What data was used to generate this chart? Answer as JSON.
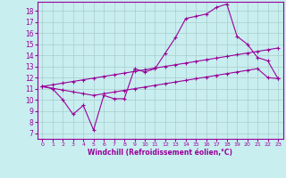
{
  "xlabel": "Windchill (Refroidissement éolien,°C)",
  "bg_color": "#c8eef0",
  "line_color": "#990099",
  "grid_color": "#aacccc",
  "xlim": [
    -0.5,
    23.5
  ],
  "ylim": [
    6.5,
    18.8
  ],
  "xticks": [
    0,
    1,
    2,
    3,
    4,
    5,
    6,
    7,
    8,
    9,
    10,
    11,
    12,
    13,
    14,
    15,
    16,
    17,
    18,
    19,
    20,
    21,
    22,
    23
  ],
  "yticks": [
    7,
    8,
    9,
    10,
    11,
    12,
    13,
    14,
    15,
    16,
    17,
    18
  ],
  "line1_x": [
    0,
    1,
    2,
    3,
    4,
    5,
    6,
    7,
    8,
    9,
    10,
    11,
    12,
    13,
    14,
    15,
    16,
    17,
    18,
    19,
    20,
    21,
    22,
    23
  ],
  "line1_y": [
    11.2,
    11.0,
    10.0,
    8.7,
    9.5,
    7.3,
    10.4,
    10.1,
    10.1,
    12.8,
    12.5,
    12.8,
    14.2,
    15.6,
    17.3,
    17.5,
    17.7,
    18.3,
    18.6,
    15.7,
    15.0,
    13.8,
    13.5,
    11.9
  ],
  "line2_x": [
    0,
    1,
    2,
    3,
    4,
    5,
    6,
    7,
    8,
    9,
    10,
    11,
    12,
    13,
    14,
    15,
    16,
    17,
    18,
    19,
    20,
    21,
    22,
    23
  ],
  "line2_y": [
    11.2,
    11.35,
    11.5,
    11.65,
    11.8,
    11.95,
    12.1,
    12.25,
    12.4,
    12.55,
    12.7,
    12.85,
    13.0,
    13.15,
    13.3,
    13.45,
    13.6,
    13.75,
    13.9,
    14.05,
    14.2,
    14.35,
    14.5,
    14.65
  ],
  "line3_x": [
    0,
    1,
    2,
    3,
    4,
    5,
    6,
    7,
    8,
    9,
    10,
    11,
    12,
    13,
    14,
    15,
    16,
    17,
    18,
    19,
    20,
    21,
    22,
    23
  ],
  "line3_y": [
    11.2,
    11.04,
    10.88,
    10.72,
    10.56,
    10.4,
    10.55,
    10.7,
    10.85,
    11.0,
    11.15,
    11.3,
    11.45,
    11.6,
    11.75,
    11.9,
    12.05,
    12.2,
    12.35,
    12.5,
    12.65,
    12.8,
    12.0,
    11.9
  ]
}
